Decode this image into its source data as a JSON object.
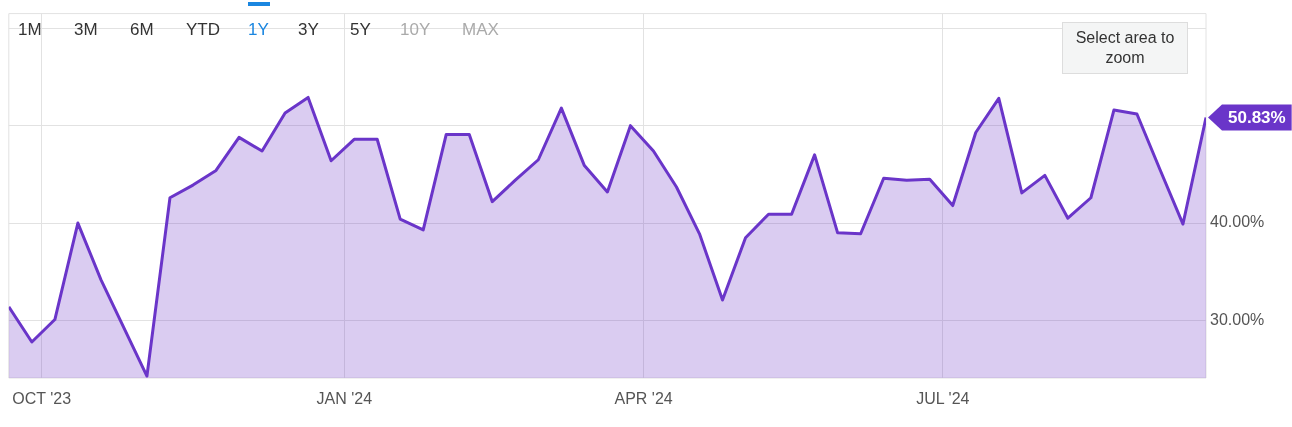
{
  "chart_data": {
    "type": "area",
    "x": [
      "2023-09-21",
      "2023-09-28",
      "2023-10-05",
      "2023-10-12",
      "2023-10-19",
      "2023-11-02",
      "2023-11-09",
      "2023-11-16",
      "2023-11-23",
      "2023-11-30",
      "2023-12-07",
      "2023-12-14",
      "2023-12-21",
      "2023-12-28",
      "2024-01-04",
      "2024-01-11",
      "2024-01-18",
      "2024-01-25",
      "2024-02-01",
      "2024-02-08",
      "2024-02-15",
      "2024-02-22",
      "2024-02-29",
      "2024-03-07",
      "2024-03-14",
      "2024-03-21",
      "2024-03-28",
      "2024-04-04",
      "2024-04-11",
      "2024-04-18",
      "2024-04-25",
      "2024-05-02",
      "2024-05-09",
      "2024-05-16",
      "2024-05-23",
      "2024-05-30",
      "2024-06-06",
      "2024-06-13",
      "2024-06-20",
      "2024-06-27",
      "2024-07-04",
      "2024-07-11",
      "2024-07-18",
      "2024-07-25",
      "2024-08-01",
      "2024-08-08",
      "2024-08-15",
      "2024-08-22",
      "2024-08-29",
      "2024-09-05",
      "2024-09-12",
      "2024-09-19"
    ],
    "series": [
      {
        "color": "#6a35c9",
        "values": [
          31.4,
          27.8,
          30.1,
          40.0,
          34.2,
          24.3,
          42.6,
          43.9,
          45.4,
          48.8,
          47.4,
          51.3,
          52.9,
          46.4,
          48.6,
          48.6,
          40.4,
          39.3,
          49.1,
          49.1,
          42.2,
          44.4,
          46.5,
          51.8,
          45.9,
          43.2,
          50.0,
          47.4,
          43.7,
          38.9,
          32.1,
          38.5,
          40.9,
          40.9,
          47.0,
          39.0,
          38.9,
          44.6,
          44.4,
          44.5,
          41.8,
          49.3,
          52.8,
          43.1,
          44.9,
          40.5,
          42.6,
          51.6,
          51.2,
          45.5,
          39.9,
          50.83
        ],
        "value_labels": [
          null,
          null,
          null,
          null,
          null,
          null,
          null,
          null,
          null,
          null,
          null,
          null,
          null,
          null,
          null,
          null,
          null,
          null,
          null,
          null,
          null,
          null,
          null,
          null,
          null,
          null,
          null,
          null,
          null,
          null,
          null,
          null,
          null,
          null,
          null,
          null,
          null,
          null,
          null,
          null,
          null,
          null,
          null,
          null,
          null,
          null,
          null,
          null,
          null,
          null,
          null,
          "50.83%"
        ]
      }
    ],
    "xlim": [
      "2023-09-21",
      "2024-09-19"
    ],
    "xticks": [
      {
        "value": "2023-10-01",
        "label": "OCT '23"
      },
      {
        "value": "2024-01-01",
        "label": "JAN '24"
      },
      {
        "value": "2024-04-01",
        "label": "APR '24"
      },
      {
        "value": "2024-07-01",
        "label": "JUL '24"
      }
    ],
    "ylim": [
      24.1,
      61.5
    ],
    "yticks": [
      {
        "value": 30,
        "label": "30.00%"
      },
      {
        "value": 40,
        "label": "40.00%"
      },
      {
        "value": 50,
        "label": null
      },
      {
        "value": 60,
        "label": null
      }
    ],
    "grid": true,
    "legend": false,
    "marker": "none",
    "line_style": "solid",
    "annotations": [
      "1M",
      "3M",
      "6M",
      "YTD",
      "1Y",
      "3Y",
      "5Y",
      "10Y",
      "MAX",
      "Select area to zoom"
    ]
  }
}
